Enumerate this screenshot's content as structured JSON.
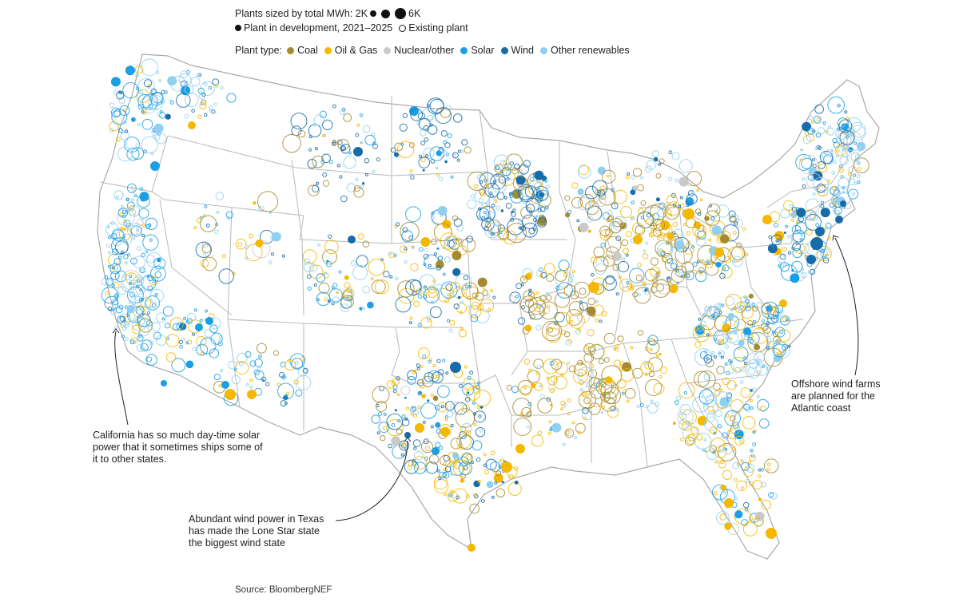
{
  "legend": {
    "size_label": "Plants sized by total MWh: 2K",
    "size_max_label": "6K",
    "dev_label": "Plant in development, 2021–2025",
    "existing_label": "Existing plant",
    "type_label": "Plant type:",
    "types": [
      {
        "name": "Coal",
        "color": "#a68a2f"
      },
      {
        "name": "Oil & Gas",
        "color": "#f5b800"
      },
      {
        "name": "Nuclear/other",
        "color": "#c9c9c9"
      },
      {
        "name": "Solar",
        "color": "#1a9ee6"
      },
      {
        "name": "Wind",
        "color": "#166ba8"
      },
      {
        "name": "Other renewables",
        "color": "#8fd0f2"
      }
    ]
  },
  "annotations": {
    "california": "California has so much day-time solar power that it sometimes ships some of it to other states.",
    "texas": "Abundant wind power in Texas has made the Lone Star state the biggest wind state",
    "offshore": "Offshore wind farms are planned for the Atlantic coast"
  },
  "source": "Source: BloombergNEF"
}
